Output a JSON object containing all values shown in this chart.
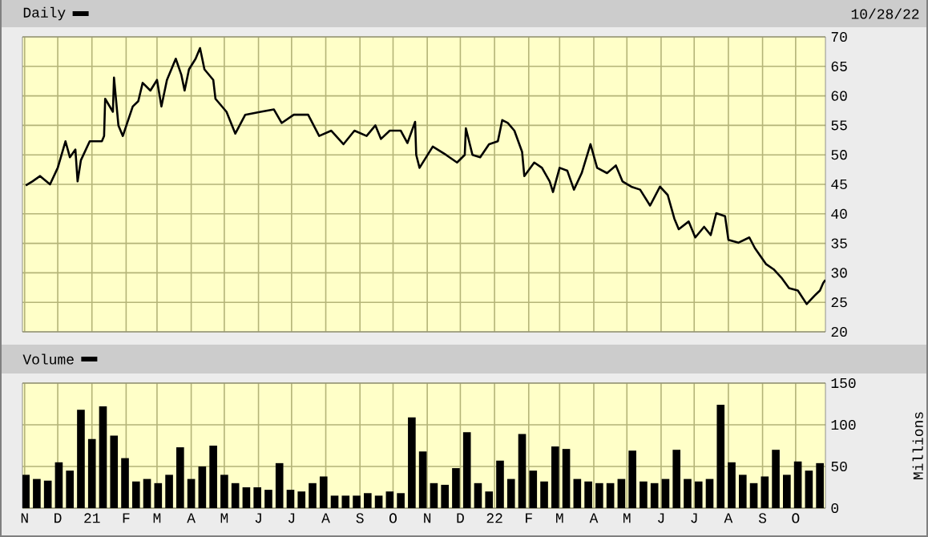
{
  "chart_data": [
    {
      "type": "line",
      "annotations": [
        "10/28/22"
      ],
      "legend": "top left",
      "grid": true,
      "tick_labels": "y",
      "xlim": [
        "2020-10-30",
        "2022-10-28"
      ],
      "ylim": [
        20,
        70
      ],
      "yticks": [
        20,
        25,
        30,
        35,
        40,
        45,
        50,
        55,
        60,
        65,
        70
      ],
      "xticks": [
        {
          "value": "2020-11-01",
          "label": null
        },
        {
          "value": "2020-12-01",
          "label": null
        },
        {
          "value": "2021-01-01",
          "label": null
        },
        {
          "value": "2021-02-01",
          "label": null
        },
        {
          "value": "2021-03-01",
          "label": null
        },
        {
          "value": "2021-04-01",
          "label": null
        },
        {
          "value": "2021-05-01",
          "label": null
        },
        {
          "value": "2021-06-01",
          "label": null
        },
        {
          "value": "2021-07-01",
          "label": null
        },
        {
          "value": "2021-08-01",
          "label": null
        },
        {
          "value": "2021-09-01",
          "label": null
        },
        {
          "value": "2021-10-01",
          "label": null
        },
        {
          "value": "2021-11-01",
          "label": null
        },
        {
          "value": "2021-12-01",
          "label": null
        },
        {
          "value": "2022-01-01",
          "label": null
        },
        {
          "value": "2022-02-01",
          "label": null
        },
        {
          "value": "2022-03-01",
          "label": null
        },
        {
          "value": "2022-04-01",
          "label": null
        },
        {
          "value": "2022-05-01",
          "label": null
        },
        {
          "value": "2022-06-01",
          "label": null
        },
        {
          "value": "2022-07-01",
          "label": null
        },
        {
          "value": "2022-08-01",
          "label": null
        },
        {
          "value": "2022-09-01",
          "label": null
        },
        {
          "value": "2022-10-01",
          "label": null
        }
      ],
      "x": [
        "2020-11-02",
        "2020-11-08",
        "2020-11-15",
        "2020-11-24",
        "2020-12-01",
        "2020-12-08",
        "2020-12-12",
        "2020-12-17",
        "2020-12-19",
        "2020-12-22",
        "2020-12-30",
        "2021-01-10",
        "2021-01-12",
        "2021-01-13",
        "2021-01-20",
        "2021-01-21",
        "2021-01-25",
        "2021-01-29",
        "2021-02-07",
        "2021-02-12",
        "2021-02-16",
        "2021-02-23",
        "2021-03-01",
        "2021-03-05",
        "2021-03-10",
        "2021-03-18",
        "2021-03-23",
        "2021-03-26",
        "2021-03-30",
        "2021-04-05",
        "2021-04-09",
        "2021-04-13",
        "2021-04-21",
        "2021-04-23",
        "2021-05-03",
        "2021-05-11",
        "2021-05-20",
        "2021-06-03",
        "2021-06-15",
        "2021-06-22",
        "2021-07-03",
        "2021-07-16",
        "2021-07-26",
        "2021-08-06",
        "2021-08-17",
        "2021-08-27",
        "2021-09-07",
        "2021-09-15",
        "2021-09-20",
        "2021-09-28",
        "2021-10-08",
        "2021-10-14",
        "2021-10-21",
        "2021-10-22",
        "2021-10-25",
        "2021-11-06",
        "2021-11-18",
        "2021-11-28",
        "2021-12-05",
        "2021-12-06",
        "2021-12-12",
        "2021-12-19",
        "2021-12-27",
        "2022-01-04",
        "2022-01-08",
        "2022-01-13",
        "2022-01-19",
        "2022-01-26",
        "2022-01-28",
        "2022-02-06",
        "2022-02-13",
        "2022-02-20",
        "2022-02-23",
        "2022-03-01",
        "2022-03-08",
        "2022-03-14",
        "2022-03-21",
        "2022-03-29",
        "2022-04-04",
        "2022-04-13",
        "2022-04-21",
        "2022-04-27",
        "2022-05-05",
        "2022-05-13",
        "2022-05-22",
        "2022-05-31",
        "2022-06-07",
        "2022-06-13",
        "2022-06-17",
        "2022-06-26",
        "2022-07-02",
        "2022-07-10",
        "2022-07-16",
        "2022-07-21",
        "2022-07-29",
        "2022-08-01",
        "2022-08-10",
        "2022-08-20",
        "2022-08-25",
        "2022-09-04",
        "2022-09-11",
        "2022-09-18",
        "2022-09-25",
        "2022-10-03",
        "2022-10-11",
        "2022-10-18",
        "2022-10-23",
        "2022-10-26",
        "2022-10-28"
      ],
      "series": [
        {
          "name": "Daily",
          "color": "#000000",
          "values": [
            44.8,
            45.5,
            46.4,
            45.0,
            47.8,
            52.3,
            49.6,
            50.9,
            45.5,
            49.1,
            52.3,
            52.3,
            53.2,
            59.5,
            57.3,
            63.1,
            55.0,
            53.2,
            58.2,
            59.1,
            62.2,
            60.9,
            62.7,
            58.2,
            62.7,
            66.3,
            63.6,
            60.9,
            64.5,
            66.3,
            68.1,
            64.5,
            62.7,
            59.5,
            57.3,
            53.6,
            56.8,
            57.3,
            57.7,
            55.4,
            56.8,
            56.8,
            53.2,
            54.1,
            51.8,
            54.1,
            53.2,
            55.0,
            52.7,
            54.1,
            54.1,
            52.0,
            55.6,
            50.0,
            47.8,
            51.4,
            50.0,
            48.7,
            50.0,
            54.5,
            50.0,
            49.6,
            51.8,
            52.3,
            55.9,
            55.4,
            54.1,
            50.5,
            46.4,
            48.7,
            47.8,
            45.5,
            43.7,
            47.8,
            47.3,
            44.1,
            46.9,
            51.8,
            47.8,
            46.9,
            48.2,
            45.5,
            44.6,
            44.1,
            41.4,
            44.6,
            43.2,
            39.2,
            37.4,
            38.7,
            36.0,
            37.8,
            36.4,
            40.1,
            39.6,
            35.6,
            35.1,
            36.0,
            34.2,
            31.5,
            30.6,
            29.2,
            27.4,
            27.0,
            24.7,
            26.1,
            27.0,
            28.3,
            28.8
          ]
        }
      ]
    },
    {
      "type": "bar",
      "ylabel": "Millions",
      "legend": "top left",
      "grid": true,
      "xlim": [
        "2020-10-30",
        "2022-10-28"
      ],
      "ylim": [
        0,
        150
      ],
      "yticks": [
        0,
        50,
        100,
        150
      ],
      "xticks": [
        {
          "value": "2020-11-01",
          "label": "N"
        },
        {
          "value": "2020-12-01",
          "label": "D"
        },
        {
          "value": "2021-01-01",
          "label": "21"
        },
        {
          "value": "2021-02-01",
          "label": "F"
        },
        {
          "value": "2021-03-01",
          "label": "M"
        },
        {
          "value": "2021-04-01",
          "label": "A"
        },
        {
          "value": "2021-05-01",
          "label": "M"
        },
        {
          "value": "2021-06-01",
          "label": "J"
        },
        {
          "value": "2021-07-01",
          "label": "J"
        },
        {
          "value": "2021-08-01",
          "label": "A"
        },
        {
          "value": "2021-09-01",
          "label": "S"
        },
        {
          "value": "2021-10-01",
          "label": "O"
        },
        {
          "value": "2021-11-01",
          "label": "N"
        },
        {
          "value": "2021-12-01",
          "label": "D"
        },
        {
          "value": "2022-01-01",
          "label": "22"
        },
        {
          "value": "2022-02-01",
          "label": "F"
        },
        {
          "value": "2022-03-01",
          "label": "M"
        },
        {
          "value": "2022-04-01",
          "label": "A"
        },
        {
          "value": "2022-05-01",
          "label": "M"
        },
        {
          "value": "2022-06-01",
          "label": "J"
        },
        {
          "value": "2022-07-01",
          "label": "J"
        },
        {
          "value": "2022-08-01",
          "label": "A"
        },
        {
          "value": "2022-09-01",
          "label": "S"
        },
        {
          "value": "2022-10-01",
          "label": "O"
        }
      ],
      "x": [
        "2020-11-02",
        "2020-11-12",
        "2020-11-22",
        "2020-12-02",
        "2020-12-12",
        "2020-12-22",
        "2021-01-01",
        "2021-01-11",
        "2021-01-21",
        "2021-01-31",
        "2021-02-10",
        "2021-02-20",
        "2021-03-02",
        "2021-03-12",
        "2021-03-22",
        "2021-04-01",
        "2021-04-11",
        "2021-04-21",
        "2021-05-01",
        "2021-05-11",
        "2021-05-21",
        "2021-05-31",
        "2021-06-10",
        "2021-06-20",
        "2021-06-30",
        "2021-07-10",
        "2021-07-20",
        "2021-07-30",
        "2021-08-09",
        "2021-08-19",
        "2021-08-29",
        "2021-09-08",
        "2021-09-18",
        "2021-09-28",
        "2021-10-08",
        "2021-10-18",
        "2021-10-28",
        "2021-11-07",
        "2021-11-17",
        "2021-11-27",
        "2021-12-07",
        "2021-12-17",
        "2021-12-27",
        "2022-01-06",
        "2022-01-16",
        "2022-01-26",
        "2022-02-05",
        "2022-02-15",
        "2022-02-25",
        "2022-03-07",
        "2022-03-17",
        "2022-03-27",
        "2022-04-06",
        "2022-04-16",
        "2022-04-26",
        "2022-05-06",
        "2022-05-16",
        "2022-05-26",
        "2022-06-05",
        "2022-06-15",
        "2022-06-25",
        "2022-07-05",
        "2022-07-15",
        "2022-07-25",
        "2022-08-04",
        "2022-08-14",
        "2022-08-24",
        "2022-09-03",
        "2022-09-13",
        "2022-09-23",
        "2022-10-03",
        "2022-10-13",
        "2022-10-23"
      ],
      "series": [
        {
          "name": "Volume",
          "color": "#000000",
          "values": [
            40,
            35,
            33,
            55,
            45,
            118,
            83,
            122,
            87,
            60,
            32,
            35,
            30,
            40,
            73,
            35,
            50,
            75,
            40,
            30,
            25,
            25,
            22,
            54,
            22,
            20,
            30,
            38,
            15,
            15,
            15,
            18,
            15,
            20,
            18,
            109,
            68,
            30,
            28,
            48,
            91,
            30,
            20,
            57,
            35,
            89,
            45,
            32,
            74,
            71,
            35,
            32,
            30,
            30,
            35,
            69,
            32,
            30,
            35,
            70,
            35,
            32,
            35,
            124,
            55,
            40,
            30,
            38,
            70,
            40,
            56,
            45,
            54
          ]
        }
      ]
    }
  ]
}
